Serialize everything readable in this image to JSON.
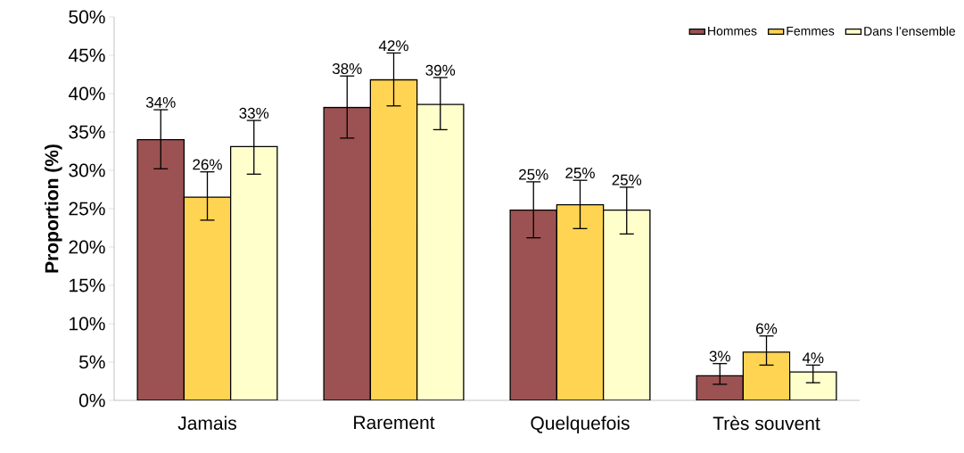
{
  "chart_data": {
    "type": "bar",
    "ylabel": "Proportion (%)",
    "categories": [
      "Jamais",
      "Rarement",
      "Quelquefois",
      "Très souvent"
    ],
    "series": [
      {
        "name": "Hommes",
        "color": "#9c5252",
        "values": [
          34.0,
          38.2,
          24.8,
          3.2
        ],
        "errors": [
          [
            30.2,
            37.9
          ],
          [
            34.2,
            42.3
          ],
          [
            21.2,
            28.5
          ],
          [
            2.1,
            4.8
          ]
        ],
        "value_labels": [
          "34%",
          "38%",
          "25%",
          "3%"
        ]
      },
      {
        "name": "Femmes",
        "color": "#ffd452",
        "values": [
          26.5,
          41.8,
          25.5,
          6.3
        ],
        "errors": [
          [
            23.5,
            29.8
          ],
          [
            38.4,
            45.3
          ],
          [
            22.4,
            28.7
          ],
          [
            4.6,
            8.4
          ]
        ],
        "value_labels": [
          "26%",
          "42%",
          "25%",
          "6%"
        ]
      },
      {
        "name": "Dans l’ensemble",
        "color": "#ffffcc",
        "values": [
          33.1,
          38.6,
          24.8,
          3.7
        ],
        "errors": [
          [
            29.5,
            36.5
          ],
          [
            35.3,
            42.1
          ],
          [
            21.7,
            27.8
          ],
          [
            2.3,
            4.6
          ]
        ],
        "value_labels": [
          "33%",
          "39%",
          "25%",
          "4%"
        ]
      }
    ],
    "ylim": [
      0,
      50
    ],
    "yticks": [
      {
        "value": 0,
        "label": "0%"
      },
      {
        "value": 5,
        "label": "5%"
      },
      {
        "value": 10,
        "label": "10%"
      },
      {
        "value": 15,
        "label": "15%"
      },
      {
        "value": 20,
        "label": "20%"
      },
      {
        "value": 25,
        "label": "25%"
      },
      {
        "value": 30,
        "label": "30%"
      },
      {
        "value": 35,
        "label": "35%"
      },
      {
        "value": 40,
        "label": "40%"
      },
      {
        "value": 45,
        "label": "45%"
      },
      {
        "value": 50,
        "label": "50%"
      }
    ],
    "legend": "top right",
    "grid": false
  }
}
